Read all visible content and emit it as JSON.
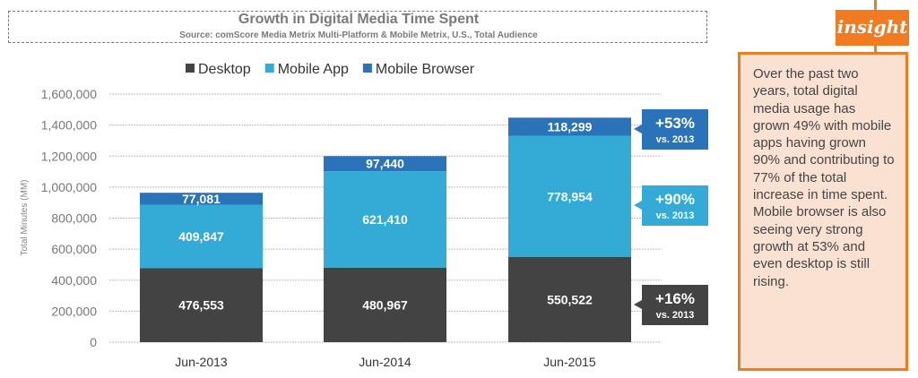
{
  "chart_data": {
    "type": "bar",
    "stacked": true,
    "title": "Growth in Digital Media Time Spent",
    "subtitle": "Source: comScore Media Metrix Multi-Platform & Mobile Metrix, U.S., Total Audience",
    "ylabel": "Total Minutes (MM)",
    "ylim": [
      0,
      1600000
    ],
    "yticks": [
      "0",
      "200,000",
      "400,000",
      "600,000",
      "800,000",
      "1,000,000",
      "1,200,000",
      "1,400,000",
      "1,600,000"
    ],
    "grid": true,
    "legend_position": "top",
    "categories": [
      "Jun-2013",
      "Jun-2014",
      "Jun-2015"
    ],
    "series": [
      {
        "name": "Desktop",
        "color": "#434343",
        "values": [
          476553,
          480967,
          550522
        ],
        "labels": [
          "476,553",
          "480,967",
          "550,522"
        ]
      },
      {
        "name": "Mobile App",
        "color": "#33abd6",
        "values": [
          409847,
          621410,
          778954
        ],
        "labels": [
          "409,847",
          "621,410",
          "778,954"
        ]
      },
      {
        "name": "Mobile Browser",
        "color": "#2a73b8",
        "values": [
          77081,
          97440,
          118299
        ],
        "labels": [
          "77,081",
          "97,440",
          "118,299"
        ]
      }
    ],
    "callouts": [
      {
        "series": "Mobile Browser",
        "pct": "+53%",
        "sub": "vs. 2013",
        "color": "#2a73b8"
      },
      {
        "series": "Mobile App",
        "pct": "+90%",
        "sub": "vs. 2013",
        "color": "#33abd6"
      },
      {
        "series": "Desktop",
        "pct": "+16%",
        "sub": "vs. 2013",
        "color": "#434343"
      }
    ]
  },
  "insight": {
    "tag": "insight",
    "text": "Over the past two years, total digital media usage has grown 49% with mobile apps having grown 90% and contributing to 77% of the total increase in time spent. Mobile browser is also seeing very strong growth at 53% and even desktop is still rising.",
    "accent": "#f07b22"
  }
}
